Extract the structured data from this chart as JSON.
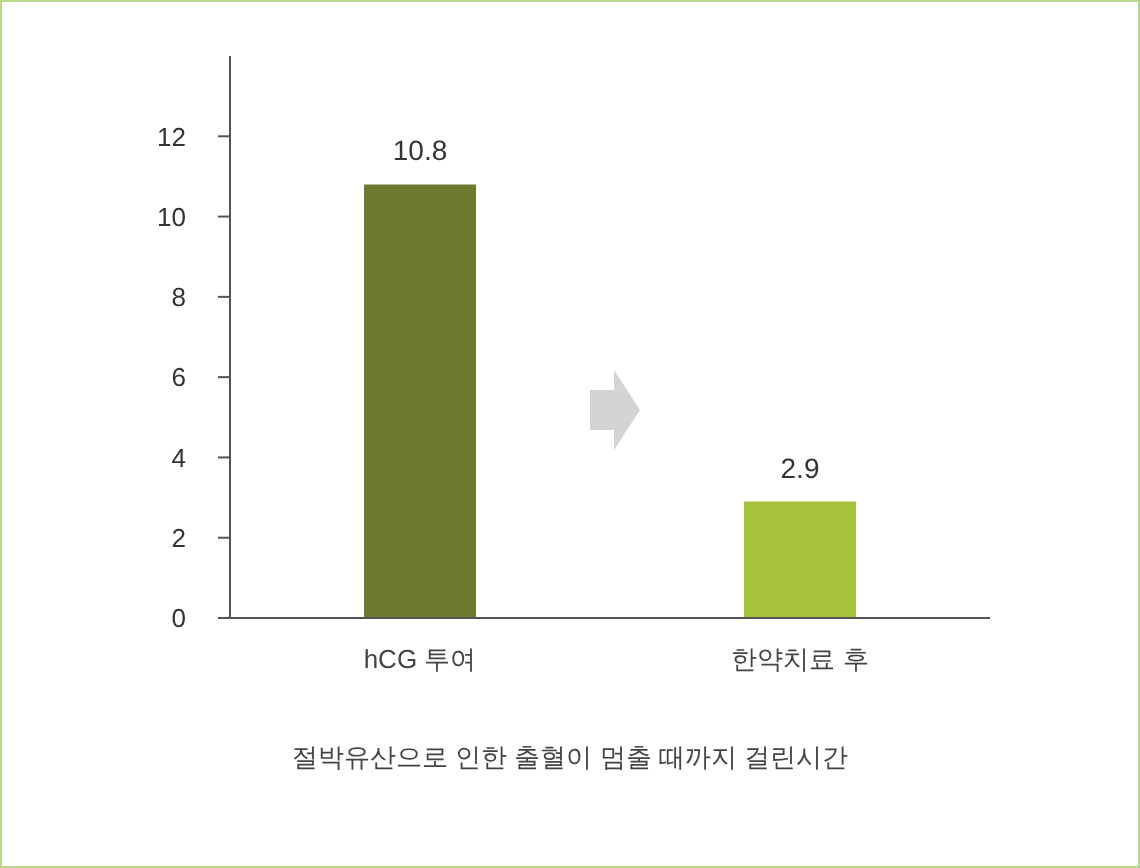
{
  "chart_data": {
    "type": "bar",
    "categories": [
      "hCG 투여",
      "한약치료 후"
    ],
    "values": [
      10.8,
      2.9
    ],
    "colors": [
      "#6b7a2e",
      "#a6c23a"
    ],
    "ylim": [
      0,
      14
    ],
    "yticks": [
      0,
      2,
      4,
      6,
      8,
      10,
      12
    ],
    "xlabel": "절박유산으로 인한 출혈이 멈출 때까지 걸린시간",
    "data_labels": true,
    "grid": false,
    "legend": false
  }
}
